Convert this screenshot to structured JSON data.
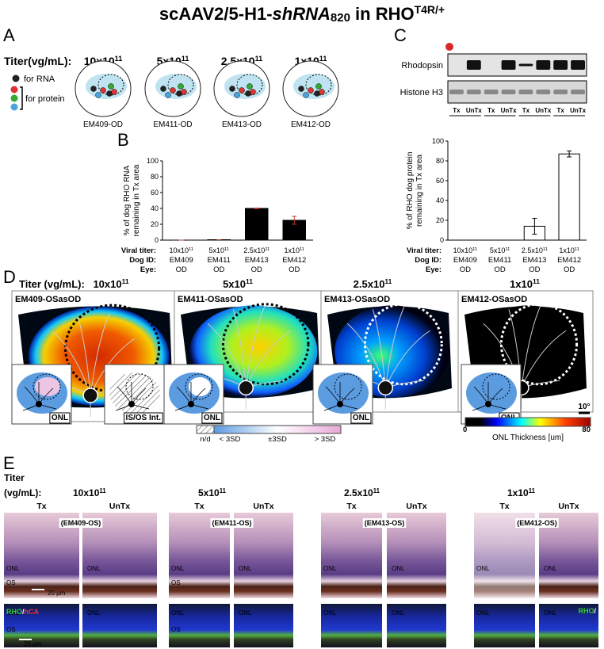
{
  "title": {
    "prefix": "scAAV2/5-H1-",
    "italic": "shRNA",
    "sub": "820",
    "mid": " in RHO",
    "sup": "T4R/+"
  },
  "panel_a": {
    "letter": "A",
    "titer_label": "Titer(vg/mL):",
    "titers": [
      {
        "base": "10x10",
        "exp": "11"
      },
      {
        "base": "5x10",
        "exp": "11"
      },
      {
        "base": "2.5x10",
        "exp": "11"
      },
      {
        "base": "1x10",
        "exp": "11"
      }
    ],
    "legend": [
      "for RNA",
      "for protein"
    ],
    "eyes": [
      "EM409-OD",
      "EM411-OD",
      "EM413-OD",
      "EM412-OD"
    ]
  },
  "panel_b": {
    "letter": "B"
  },
  "panel_c": {
    "letter": "C",
    "blot_rows": [
      "Rhodopsin",
      "Histone H3"
    ],
    "lanes": [
      "Tx",
      "UnTx",
      "Tx",
      "UnTx",
      "Tx",
      "UnTx",
      "Tx",
      "UnTx"
    ]
  },
  "chart_data": [
    {
      "type": "bar",
      "ylabel": [
        "% of dog RHO RNA",
        "remaining in Tx area"
      ],
      "ylim": [
        0,
        100
      ],
      "yticks": [
        0,
        20,
        40,
        60,
        80,
        100
      ],
      "values": [
        0,
        0.5,
        40,
        25
      ],
      "errors": [
        0,
        0,
        0.5,
        5
      ],
      "color": "#000000",
      "edgecolor": "#000000",
      "error_color": "#c0392b",
      "row_labels": [
        "Viral titer:",
        "Dog ID:",
        "Eye:"
      ],
      "titers": [
        {
          "base": "10x10",
          "exp": "11"
        },
        {
          "base": "5x10",
          "exp": "11"
        },
        {
          "base": "2.5x10",
          "exp": "11"
        },
        {
          "base": "1x10",
          "exp": "11"
        }
      ],
      "dog_ids": [
        "EM409",
        "EM411",
        "EM413",
        "EM412"
      ],
      "eyes": [
        "OD",
        "OD",
        "OD",
        "OD"
      ]
    },
    {
      "type": "bar",
      "ylabel": [
        "% of RHO dog protein",
        "remaining in Tx area"
      ],
      "ylim": [
        0,
        100
      ],
      "yticks": [
        0,
        20,
        40,
        60,
        80,
        100
      ],
      "values": [
        0,
        0,
        14,
        87
      ],
      "errors": [
        0,
        0,
        8,
        3
      ],
      "color": "#ffffff",
      "edgecolor": "#000000",
      "error_color": "#000000",
      "row_labels": [
        "Viral titer:",
        "Dog ID:",
        "Eye:"
      ],
      "titers": [
        {
          "base": "10x10",
          "exp": "11"
        },
        {
          "base": "5x10",
          "exp": "11"
        },
        {
          "base": "2.5x10",
          "exp": "11"
        },
        {
          "base": "1x10",
          "exp": "11"
        }
      ],
      "dog_ids": [
        "EM409",
        "EM411",
        "EM413",
        "EM412"
      ],
      "eyes": [
        "OD",
        "OD",
        "OD",
        "OD"
      ]
    }
  ],
  "panel_d": {
    "letter": "D",
    "titer_label": "Titer (vg/mL):",
    "titers": [
      {
        "base": "10x10",
        "exp": "11"
      },
      {
        "base": "5x10",
        "exp": "11"
      },
      {
        "base": "2.5x10",
        "exp": "11"
      },
      {
        "base": "1x10",
        "exp": "11"
      }
    ],
    "maps": [
      "EM409-OSasOD",
      "EM411-OSasOD",
      "EM413-OSasOD",
      "EM412-OSasOD"
    ],
    "insets": [
      "ONL",
      "IS/OS Int.",
      "ONL",
      "ONL",
      "ONL"
    ],
    "sd_legend": [
      "n/d",
      "< 3SD",
      "±3SD",
      "> 3SD"
    ],
    "colorbar": {
      "min": "0",
      "max": "80",
      "label": "ONL Thickness [um]"
    },
    "scale": "10°"
  },
  "panel_e": {
    "letter": "E",
    "titer_label": [
      "Titer",
      "(vg/mL):"
    ],
    "titers": [
      {
        "base": "10x10",
        "exp": "11"
      },
      {
        "base": "5x10",
        "exp": "11"
      },
      {
        "base": "2.5x10",
        "exp": "11"
      },
      {
        "base": "1x10",
        "exp": "11"
      }
    ],
    "columns": [
      "Tx",
      "UnTx"
    ],
    "samples": [
      "(EM409-OS)",
      "(EM411-OS)",
      "(EM413-OS)",
      "(EM412-OS)"
    ],
    "labels": {
      "onl": "ONL",
      "os": "OS",
      "scale": "20 µm"
    },
    "stain": {
      "rho": "RHO",
      "sep": "/",
      "hca": "hCA"
    }
  }
}
